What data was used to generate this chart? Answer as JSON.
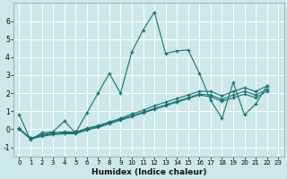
{
  "xlabel": "Humidex (Indice chaleur)",
  "bg_color": "#cce8e8",
  "grid_color": "#ffffff",
  "line_color": "#1a7070",
  "xlim": [
    -0.5,
    23.5
  ],
  "ylim": [
    -1.5,
    7.0
  ],
  "yticks": [
    -1,
    0,
    1,
    2,
    3,
    4,
    5,
    6
  ],
  "xticks": [
    0,
    1,
    2,
    3,
    4,
    5,
    6,
    7,
    8,
    9,
    10,
    11,
    12,
    13,
    14,
    15,
    16,
    17,
    18,
    19,
    20,
    21,
    22,
    23
  ],
  "series1_y": [
    0.8,
    -0.6,
    -0.2,
    -0.15,
    0.45,
    -0.2,
    0.9,
    2.0,
    3.1,
    2.0,
    4.3,
    5.5,
    6.5,
    4.2,
    4.35,
    4.4,
    3.1,
    1.6,
    0.6,
    2.6,
    0.8,
    1.4,
    2.4
  ],
  "series2_y": [
    0.05,
    -0.5,
    -0.3,
    -0.2,
    -0.15,
    -0.15,
    0.05,
    0.2,
    0.4,
    0.6,
    0.85,
    1.05,
    1.3,
    1.5,
    1.7,
    1.9,
    2.1,
    2.1,
    1.85,
    2.1,
    2.3,
    2.1,
    2.4
  ],
  "series3_y": [
    0.0,
    -0.5,
    -0.35,
    -0.25,
    -0.2,
    -0.2,
    0.0,
    0.15,
    0.35,
    0.55,
    0.75,
    0.95,
    1.15,
    1.35,
    1.55,
    1.75,
    1.95,
    1.9,
    1.65,
    1.9,
    2.1,
    1.9,
    2.2
  ],
  "series4_y": [
    0.0,
    -0.55,
    -0.4,
    -0.3,
    -0.25,
    -0.25,
    -0.05,
    0.1,
    0.3,
    0.5,
    0.7,
    0.9,
    1.1,
    1.3,
    1.5,
    1.7,
    1.9,
    1.8,
    1.55,
    1.75,
    1.95,
    1.75,
    2.1
  ]
}
